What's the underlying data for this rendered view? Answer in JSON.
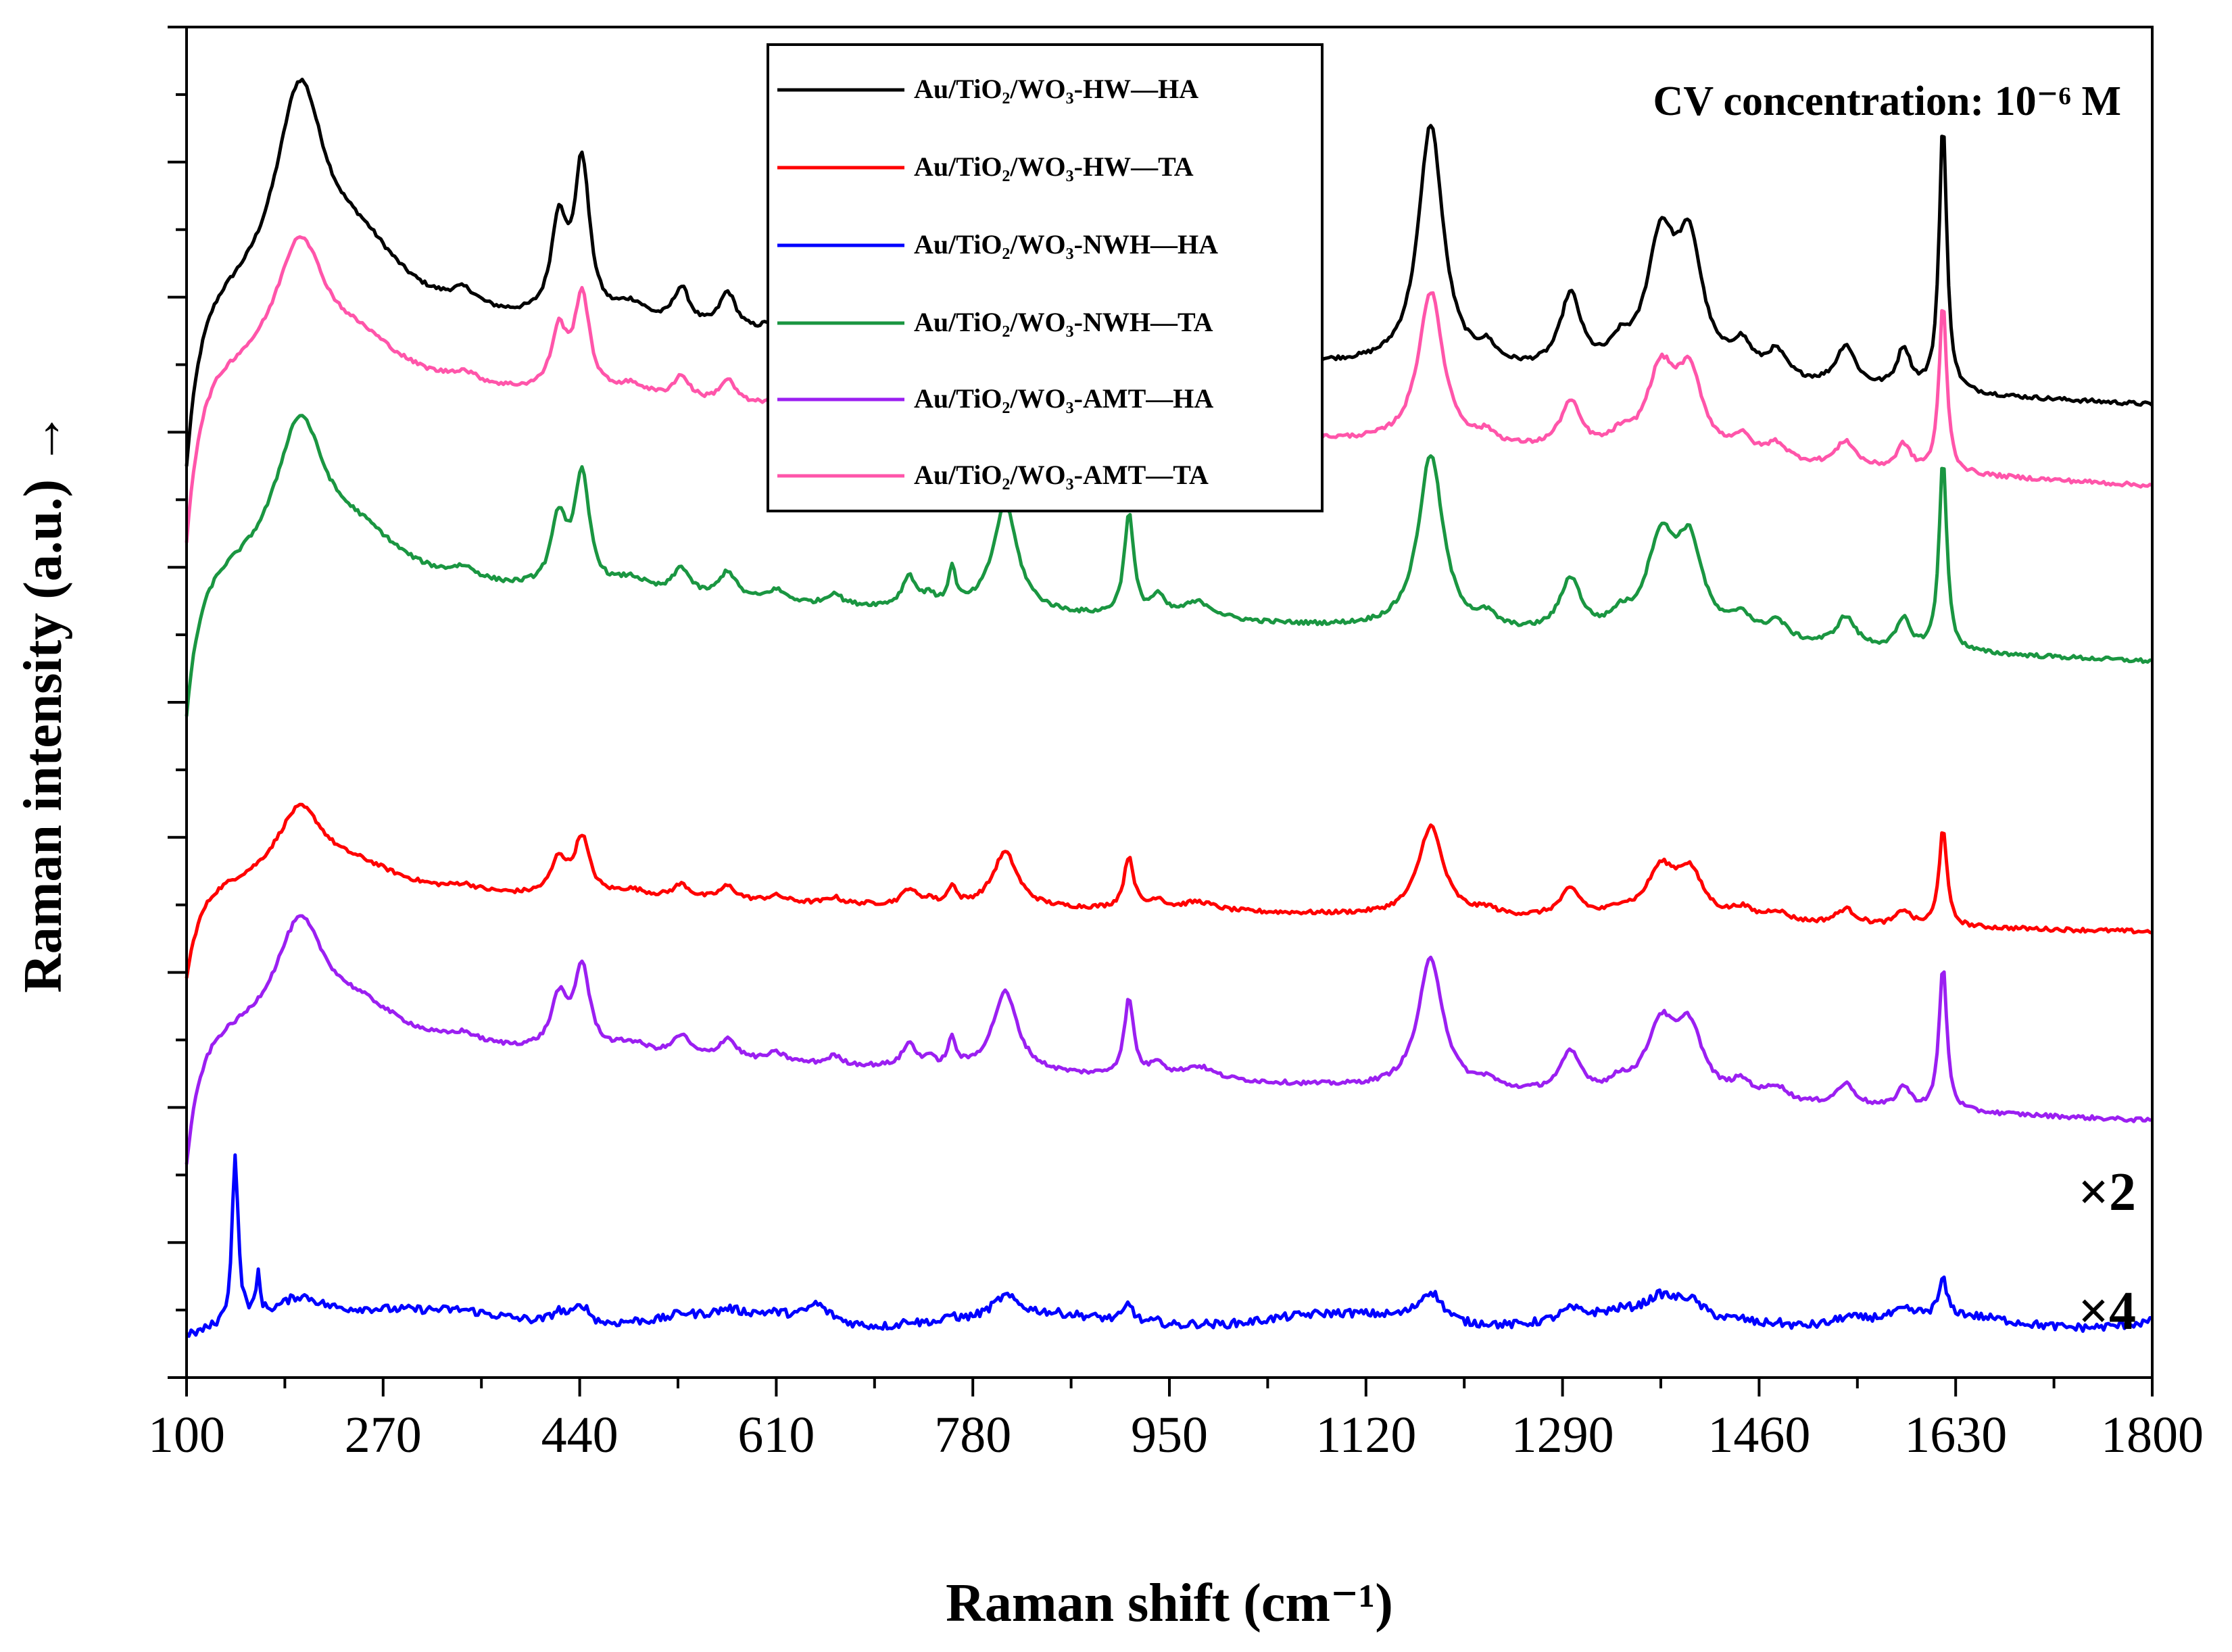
{
  "chart_data": {
    "type": "line",
    "title": "",
    "xlabel": "Raman shift (cm⁻¹)",
    "ylabel": "Raman intensity (a.u.) →",
    "xlim": [
      100,
      1800
    ],
    "xticks": [
      100,
      270,
      440,
      610,
      780,
      950,
      1120,
      1290,
      1460,
      1630,
      1800
    ],
    "xtick_labels": [
      "100",
      "270",
      "440",
      "610",
      "780",
      "950",
      "1120",
      "1290",
      "1460",
      "1630",
      "1800"
    ],
    "ylim": [
      0,
      1
    ],
    "yticks_labeled": false,
    "grid": false,
    "legend_position": "top-center",
    "annotations": [
      {
        "text": "CV concentration: 10⁻⁶ M",
        "position": "top-right"
      },
      {
        "text": "×2",
        "applies_to": "Au/TiO₂/WO₃-AMT—HA"
      },
      {
        "text": "×4",
        "applies_to": "Au/TiO₂/WO₃-NWH—HA"
      }
    ],
    "series": [
      {
        "name": "Au/TiO₂/WO₃-HW—HA",
        "color": "#000000",
        "offset": 0.79,
        "scale": 1.0,
        "slope": -0.007,
        "rise": 0.13
      },
      {
        "name": "Au/TiO₂/WO₃-HW—TA",
        "color": "#ff0000",
        "offset": 0.36,
        "scale": 0.37,
        "slope": -0.003,
        "rise": 0.07
      },
      {
        "name": "Au/TiO₂/WO₃-NWH—HA",
        "color": "#0000ff",
        "offset": 0.042,
        "scale": 0.13,
        "slope": 0.0,
        "rise": 0.0
      },
      {
        "name": "Au/TiO₂/WO₃-NWH—TA",
        "color": "#1a9641",
        "offset": 0.59,
        "scale": 0.72,
        "slope": -0.006,
        "rise": 0.11
      },
      {
        "name": "Au/TiO₂/WO₃-AMT—HA",
        "color": "#9b1ff1",
        "offset": 0.25,
        "scale": 0.54,
        "slope": -0.006,
        "rise": 0.1
      },
      {
        "name": "Au/TiO₂/WO₃-AMT—TA",
        "color": "#ff55aa",
        "offset": 0.74,
        "scale": 0.63,
        "slope": -0.008,
        "rise": 0.13
      }
    ],
    "peaks": [
      {
        "x": 198,
        "h": 0.155,
        "w": 26
      },
      {
        "x": 250,
        "h": 0.045,
        "w": 45
      },
      {
        "x": 340,
        "h": 0.012,
        "w": 14
      },
      {
        "x": 422,
        "h": 0.07,
        "w": 8
      },
      {
        "x": 442,
        "h": 0.115,
        "w": 8
      },
      {
        "x": 485,
        "h": 0.015,
        "w": 18
      },
      {
        "x": 528,
        "h": 0.028,
        "w": 9
      },
      {
        "x": 568,
        "h": 0.028,
        "w": 9
      },
      {
        "x": 610,
        "h": 0.012,
        "w": 10
      },
      {
        "x": 660,
        "h": 0.012,
        "w": 7
      },
      {
        "x": 725,
        "h": 0.032,
        "w": 7
      },
      {
        "x": 742,
        "h": 0.012,
        "w": 5
      },
      {
        "x": 762,
        "h": 0.038,
        "w": 4
      },
      {
        "x": 808,
        "h": 0.11,
        "w": 13
      },
      {
        "x": 915,
        "h": 0.105,
        "w": 5
      },
      {
        "x": 940,
        "h": 0.02,
        "w": 7
      },
      {
        "x": 975,
        "h": 0.018,
        "w": 17
      },
      {
        "x": 1176,
        "h": 0.18,
        "w": 13
      },
      {
        "x": 1225,
        "h": 0.012,
        "w": 9
      },
      {
        "x": 1297,
        "h": 0.055,
        "w": 11
      },
      {
        "x": 1340,
        "h": 0.015,
        "w": 10
      },
      {
        "x": 1375,
        "h": 0.095,
        "w": 15
      },
      {
        "x": 1400,
        "h": 0.09,
        "w": 14
      },
      {
        "x": 1445,
        "h": 0.022,
        "w": 11
      },
      {
        "x": 1475,
        "h": 0.02,
        "w": 11
      },
      {
        "x": 1535,
        "h": 0.03,
        "w": 10
      },
      {
        "x": 1585,
        "h": 0.03,
        "w": 7
      },
      {
        "x": 1619,
        "h": 0.2,
        "w": 4
      }
    ]
  }
}
